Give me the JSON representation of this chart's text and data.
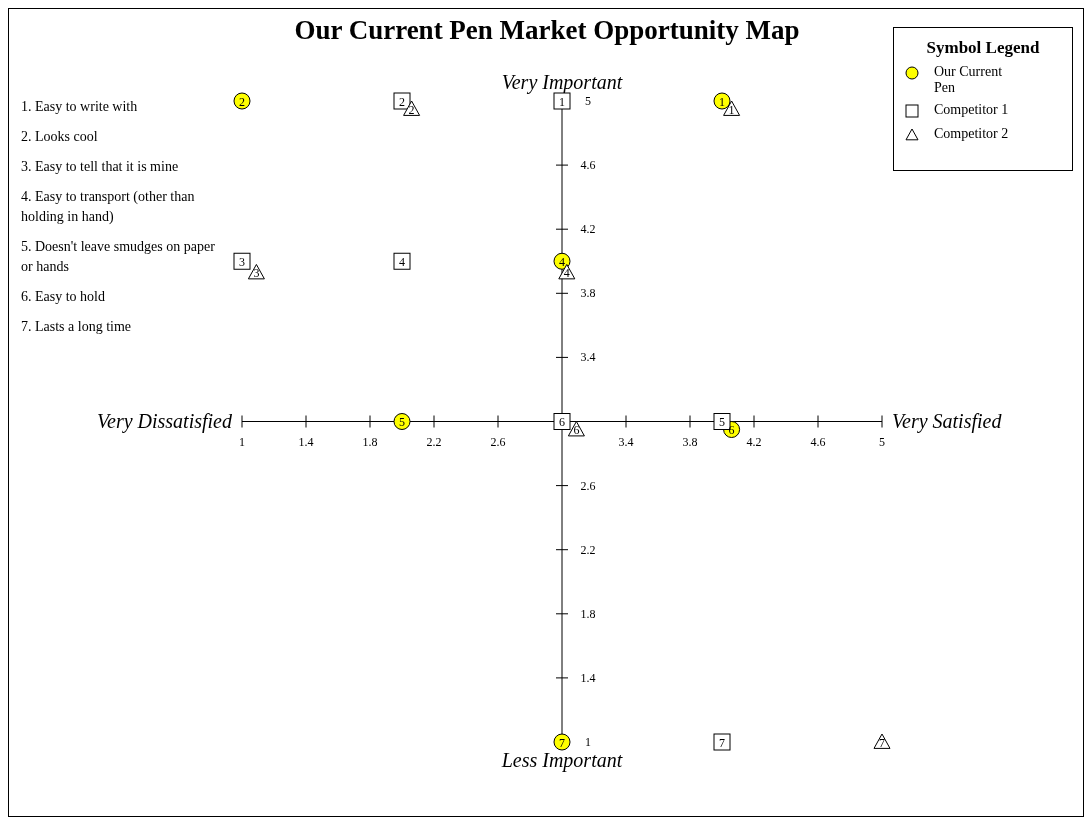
{
  "chart_data": {
    "type": "scatter",
    "title": "Our Current Pen Market Opportunity Map",
    "legend": "top right",
    "legend_title": "Symbol Legend",
    "xlim": [
      1,
      5
    ],
    "ylim": [
      1,
      5
    ],
    "xticks": [
      1,
      1.4,
      1.8,
      2.2,
      2.6,
      3.4,
      3.8,
      4.2,
      4.6,
      5
    ],
    "yticks": [
      1,
      1.4,
      1.8,
      2.2,
      2.6,
      3.4,
      3.8,
      4.2,
      4.6,
      5
    ],
    "series": [
      {
        "name": "Our Current Pen",
        "color": "#ffff00",
        "marker": "circle",
        "x": [
          4,
          1,
          3,
          2,
          4.06,
          3
        ],
        "values": [
          5,
          5,
          4,
          3,
          2.95,
          1
        ]
      },
      {
        "name": "Competitor 1",
        "color": "#000000",
        "marker": "square",
        "x": [
          3,
          2,
          1,
          2,
          4,
          3,
          4
        ],
        "values": [
          5,
          5,
          4,
          4,
          3,
          3,
          1
        ]
      },
      {
        "name": "Competitor 2",
        "color": "#000000",
        "marker": "triangle",
        "x": [
          4.06,
          2.06,
          1.09,
          3.03,
          3.09,
          5
        ],
        "values": [
          4.95,
          4.95,
          3.93,
          3.93,
          2.95,
          1
        ]
      }
    ],
    "annotations": [
      "Very Important",
      "Less Important",
      "Very Dissatisfied",
      "Very Satisfied",
      "1.  Easy to write with",
      "2.  Looks cool",
      "3.  Easy to tell that it is mine",
      "4.  Easy to transport (other than holding in hand)",
      "5.  Doesn't leave smudges on paper or hands",
      "6.  Easy to hold",
      "7.  Lasts a long time",
      {
        "text": "1",
        "x": 4,
        "y": 5
      },
      {
        "text": "2",
        "x": 1,
        "y": 5
      },
      {
        "text": "4",
        "x": 3,
        "y": 4
      },
      {
        "text": "5",
        "x": 2,
        "y": 3
      },
      {
        "text": "6",
        "x": 4.06,
        "y": 2.95
      },
      {
        "text": "7",
        "x": 3,
        "y": 1
      },
      {
        "text": "1",
        "x": 3,
        "y": 5
      },
      {
        "text": "2",
        "x": 2,
        "y": 5
      },
      {
        "text": "3",
        "x": 1,
        "y": 4
      },
      {
        "text": "4",
        "x": 2,
        "y": 4
      },
      {
        "text": "5",
        "x": 4,
        "y": 3
      },
      {
        "text": "6",
        "x": 3,
        "y": 3
      },
      {
        "text": "7",
        "x": 4,
        "y": 1
      },
      {
        "text": "1",
        "x": 4.06,
        "y": 4.95
      },
      {
        "text": "2",
        "x": 2.06,
        "y": 4.95
      },
      {
        "text": "3",
        "x": 1.09,
        "y": 3.93
      },
      {
        "text": "4",
        "x": 3.03,
        "y": 3.93
      },
      {
        "text": "6",
        "x": 3.09,
        "y": 2.95
      },
      {
        "text": "7",
        "x": 5,
        "y": 1
      }
    ]
  }
}
